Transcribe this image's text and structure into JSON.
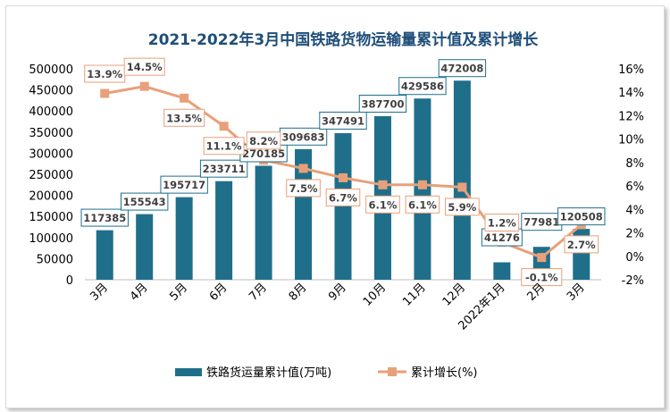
{
  "chart_data": {
    "type": "bar+line",
    "title": "2021-2022年3月中国铁路货物运输量累计值及累计增长",
    "categories": [
      "3月",
      "4月",
      "5月",
      "6月",
      "7月",
      "8月",
      "9月",
      "10月",
      "11月",
      "12月",
      "2022年1月",
      "2月",
      "3月"
    ],
    "series": [
      {
        "name": "铁路货运量累计值(万吨)",
        "type": "bar",
        "axis": "left",
        "color": "#1f6f8b",
        "values": [
          117385,
          155543,
          195717,
          233711,
          270185,
          309683,
          347491,
          387700,
          429586,
          472008,
          41276,
          77981,
          120508
        ],
        "labels": [
          "117385",
          "155543",
          "195717",
          "233711",
          "270185",
          "309683",
          "347491",
          "387700",
          "429586",
          "472008",
          "41276",
          "77981",
          "120508"
        ]
      },
      {
        "name": "累计增长(%)",
        "type": "line",
        "axis": "right",
        "color": "#e8a07a",
        "values": [
          13.9,
          14.5,
          13.5,
          11.1,
          8.2,
          7.5,
          6.7,
          6.1,
          6.1,
          5.9,
          1.2,
          -0.1,
          2.7
        ],
        "labels": [
          "13.9%",
          "14.5%",
          "13.5%",
          "11.1%",
          "8.2%",
          "7.5%",
          "6.7%",
          "6.1%",
          "6.1%",
          "5.9%",
          "1.2%",
          "-0.1%",
          "2.7%"
        ]
      }
    ],
    "y_left": {
      "min": 0,
      "max": 500000,
      "ticks": [
        0,
        50000,
        100000,
        150000,
        200000,
        250000,
        300000,
        350000,
        400000,
        450000,
        500000
      ],
      "tick_labels": [
        "0",
        "50000",
        "100000",
        "150000",
        "200000",
        "250000",
        "300000",
        "350000",
        "400000",
        "450000",
        "500000"
      ]
    },
    "y_right": {
      "min": -2,
      "max": 16,
      "ticks": [
        -2,
        0,
        2,
        4,
        6,
        8,
        10,
        12,
        14,
        16
      ],
      "tick_labels": [
        "-2%",
        "0%",
        "2%",
        "4%",
        "6%",
        "8%",
        "10%",
        "12%",
        "14%",
        "16%"
      ]
    },
    "grid": false,
    "legend_position": "bottom"
  }
}
